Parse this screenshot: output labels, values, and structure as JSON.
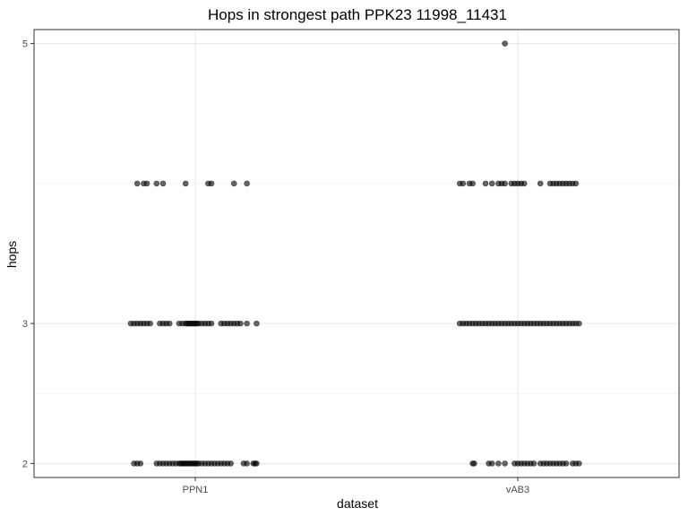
{
  "chart_data": {
    "type": "scatter",
    "title": "Hops in strongest path PPK23 11998_11431",
    "xlabel": "dataset",
    "ylabel": "hops",
    "categories": [
      "PPN1",
      "vAB3"
    ],
    "y_ticks": [
      2,
      3,
      5
    ],
    "y_ticks_labels": [
      "2",
      "3",
      "5"
    ],
    "ylim": [
      1.9,
      5.1
    ],
    "grid": true,
    "series": [
      {
        "category": "PPN1",
        "points": [
          {
            "y": 2,
            "x_offsets": [
              -0.19,
              -0.18,
              -0.17,
              -0.12,
              -0.11,
              -0.1,
              -0.09,
              -0.08,
              -0.07,
              -0.06,
              -0.05,
              -0.045,
              -0.04,
              -0.035,
              -0.03,
              -0.025,
              -0.02,
              -0.015,
              -0.01,
              -0.005,
              0.0,
              0.005,
              0.01,
              0.02,
              0.03,
              0.04,
              0.05,
              0.06,
              0.07,
              0.08,
              0.09,
              0.1,
              0.11,
              0.15,
              0.16,
              0.18,
              0.185,
              0.19
            ]
          },
          {
            "y": 3,
            "x_offsets": [
              -0.2,
              -0.19,
              -0.18,
              -0.17,
              -0.16,
              -0.15,
              -0.14,
              -0.11,
              -0.1,
              -0.09,
              -0.08,
              -0.05,
              -0.04,
              -0.03,
              -0.025,
              -0.02,
              -0.015,
              -0.01,
              -0.005,
              0.0,
              0.005,
              0.01,
              0.02,
              0.03,
              0.04,
              0.05,
              0.08,
              0.09,
              0.1,
              0.11,
              0.12,
              0.13,
              0.14,
              0.16,
              0.19
            ]
          },
          {
            "y": 4,
            "x_offsets": [
              -0.18,
              -0.16,
              -0.15,
              -0.12,
              -0.1,
              -0.03,
              0.04,
              0.05,
              0.12,
              0.16
            ]
          }
        ]
      },
      {
        "category": "vAB3",
        "points": [
          {
            "y": 2,
            "x_offsets": [
              -0.14,
              -0.135,
              -0.09,
              -0.08,
              -0.06,
              -0.04,
              -0.01,
              0.0,
              0.01,
              0.02,
              0.03,
              0.04,
              0.05,
              0.07,
              0.08,
              0.09,
              0.1,
              0.11,
              0.12,
              0.13,
              0.14,
              0.15,
              0.17,
              0.18,
              0.19
            ]
          },
          {
            "y": 3,
            "x_offsets": [
              -0.18,
              -0.17,
              -0.16,
              -0.15,
              -0.14,
              -0.13,
              -0.12,
              -0.11,
              -0.1,
              -0.09,
              -0.08,
              -0.07,
              -0.06,
              -0.05,
              -0.04,
              -0.03,
              -0.02,
              -0.01,
              0.0,
              0.01,
              0.02,
              0.03,
              0.04,
              0.05,
              0.06,
              0.07,
              0.08,
              0.09,
              0.1,
              0.11,
              0.12,
              0.13,
              0.14,
              0.15,
              0.16,
              0.17,
              0.18,
              0.19
            ]
          },
          {
            "y": 4,
            "x_offsets": [
              -0.18,
              -0.17,
              -0.15,
              -0.14,
              -0.1,
              -0.08,
              -0.06,
              -0.05,
              -0.04,
              -0.02,
              -0.01,
              0.0,
              0.01,
              0.02,
              0.07,
              0.1,
              0.11,
              0.12,
              0.13,
              0.14,
              0.15,
              0.16,
              0.17,
              0.18
            ]
          },
          {
            "y": 5,
            "x_offsets": [
              -0.04
            ]
          }
        ]
      }
    ]
  }
}
